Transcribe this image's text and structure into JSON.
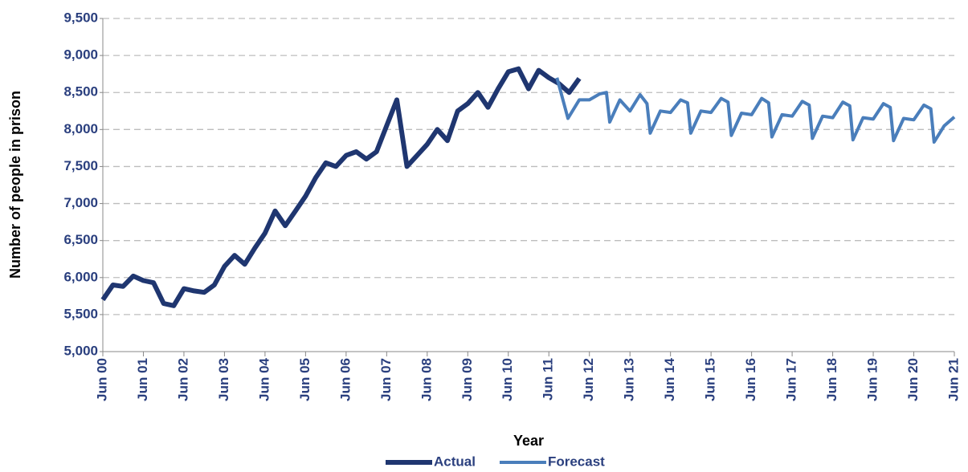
{
  "chart_data": {
    "type": "line",
    "x_label": "Year",
    "y_label": "Number of people in prison",
    "xlim": [
      0,
      21
    ],
    "ylim": [
      5000,
      9500
    ],
    "xticks": [
      {
        "value": 0,
        "label": "Jun 00"
      },
      {
        "value": 1,
        "label": "Jun 01"
      },
      {
        "value": 2,
        "label": "Jun 02"
      },
      {
        "value": 3,
        "label": "Jun 03"
      },
      {
        "value": 4,
        "label": "Jun 04"
      },
      {
        "value": 5,
        "label": "Jun 05"
      },
      {
        "value": 6,
        "label": "Jun 06"
      },
      {
        "value": 7,
        "label": "Jun 07"
      },
      {
        "value": 8,
        "label": "Jun 08"
      },
      {
        "value": 9,
        "label": "Jun 09"
      },
      {
        "value": 10,
        "label": "Jun 10"
      },
      {
        "value": 11,
        "label": "Jun 11"
      },
      {
        "value": 12,
        "label": "Jun 12"
      },
      {
        "value": 13,
        "label": "Jun 13"
      },
      {
        "value": 14,
        "label": "Jun 14"
      },
      {
        "value": 15,
        "label": "Jun 15"
      },
      {
        "value": 16,
        "label": "Jun 16"
      },
      {
        "value": 17,
        "label": "Jun 17"
      },
      {
        "value": 18,
        "label": "Jun 18"
      },
      {
        "value": 19,
        "label": "Jun 19"
      },
      {
        "value": 20,
        "label": "Jun 20"
      },
      {
        "value": 21,
        "label": "Jun 21"
      }
    ],
    "yticks": [
      {
        "value": 5000,
        "label": "5,000"
      },
      {
        "value": 5500,
        "label": "5,500"
      },
      {
        "value": 6000,
        "label": "6,000"
      },
      {
        "value": 6500,
        "label": "6,500"
      },
      {
        "value": 7000,
        "label": "7,000"
      },
      {
        "value": 7500,
        "label": "7,500"
      },
      {
        "value": 8000,
        "label": "8,000"
      },
      {
        "value": 8500,
        "label": "8,500"
      },
      {
        "value": 9000,
        "label": "9,000"
      },
      {
        "value": 9500,
        "label": "9,500"
      }
    ],
    "grid": true,
    "legend": "bottom",
    "series": [
      {
        "name": "Actual",
        "color": "#1f3670",
        "width": 6,
        "x": [
          0,
          0.25,
          0.5,
          0.75,
          1,
          1.25,
          1.5,
          1.75,
          2,
          2.25,
          2.5,
          2.75,
          3,
          3.25,
          3.5,
          3.75,
          4,
          4.25,
          4.5,
          4.75,
          5,
          5.25,
          5.5,
          5.75,
          6,
          6.25,
          6.5,
          6.75,
          7,
          7.25,
          7.5,
          7.75,
          8,
          8.25,
          8.5,
          8.75,
          9,
          9.25,
          9.5,
          9.75,
          10,
          10.25,
          10.5,
          10.75,
          11,
          11.25,
          11.5,
          11.75
        ],
        "values": [
          5700,
          5900,
          5880,
          6020,
          5960,
          5930,
          5650,
          5620,
          5850,
          5820,
          5800,
          5900,
          6150,
          6300,
          6180,
          6400,
          6600,
          6900,
          6700,
          6900,
          7100,
          7350,
          7550,
          7500,
          7650,
          7700,
          7600,
          7700,
          8050,
          8400,
          7500,
          7650,
          7800,
          8000,
          7850,
          8250,
          8350,
          8500,
          8300,
          8550,
          8780,
          8820,
          8550,
          8800,
          8700,
          8620,
          8500,
          8690
        ]
      },
      {
        "name": "Forecast",
        "color": "#4a7ebb",
        "width": 4,
        "x": [
          11.2,
          11.47,
          11.75,
          12,
          12.25,
          12.42,
          12.5,
          12.75,
          13,
          13.25,
          13.42,
          13.5,
          13.75,
          14,
          14.25,
          14.42,
          14.5,
          14.75,
          15,
          15.25,
          15.42,
          15.5,
          15.75,
          16,
          16.25,
          16.42,
          16.5,
          16.75,
          17,
          17.25,
          17.42,
          17.5,
          17.75,
          18,
          18.25,
          18.42,
          18.5,
          18.75,
          19,
          19.25,
          19.42,
          19.5,
          19.75,
          20,
          20.25,
          20.42,
          20.5,
          20.75,
          21
        ],
        "values": [
          8700,
          8150,
          8400,
          8400,
          8480,
          8500,
          8100,
          8400,
          8250,
          8470,
          8350,
          7950,
          8250,
          8230,
          8400,
          8360,
          7950,
          8250,
          8230,
          8420,
          8370,
          7920,
          8220,
          8200,
          8420,
          8360,
          7900,
          8200,
          8180,
          8380,
          8330,
          7880,
          8180,
          8160,
          8370,
          8320,
          7860,
          8160,
          8140,
          8350,
          8300,
          7850,
          8150,
          8130,
          8330,
          8280,
          7830,
          8050,
          8170
        ]
      }
    ]
  }
}
